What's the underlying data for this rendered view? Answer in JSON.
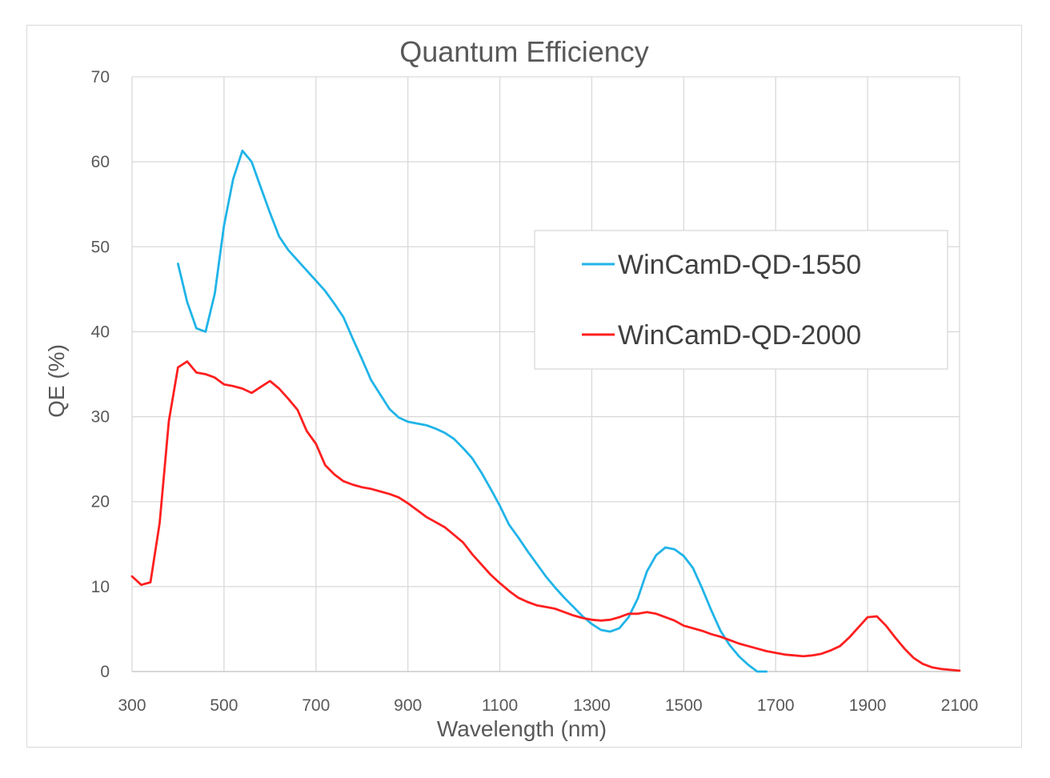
{
  "chart_data": {
    "type": "line",
    "title": "Quantum Efficiency",
    "xlabel": "Wavelength (nm)",
    "ylabel": "QE (%)",
    "xlim": [
      300,
      2100
    ],
    "ylim": [
      0,
      70
    ],
    "x_ticks": [
      300,
      500,
      700,
      900,
      1100,
      1300,
      1500,
      1700,
      1900,
      2100
    ],
    "y_ticks": [
      0,
      10,
      20,
      30,
      40,
      50,
      60,
      70
    ],
    "grid": "vertical and horizontal",
    "legend_position": "right",
    "series": [
      {
        "name": "WinCamD-QD-1550",
        "color": "#1fb4e8",
        "x": [
          400,
          420,
          440,
          460,
          480,
          500,
          520,
          540,
          560,
          580,
          600,
          620,
          640,
          660,
          680,
          700,
          720,
          740,
          760,
          780,
          800,
          820,
          840,
          860,
          880,
          900,
          920,
          940,
          960,
          980,
          1000,
          1020,
          1040,
          1060,
          1080,
          1100,
          1120,
          1140,
          1160,
          1180,
          1200,
          1220,
          1240,
          1260,
          1280,
          1300,
          1320,
          1340,
          1360,
          1380,
          1400,
          1420,
          1440,
          1460,
          1470,
          1480,
          1500,
          1520,
          1540,
          1560,
          1580,
          1600,
          1620,
          1640,
          1660,
          1680
        ],
        "y": [
          48,
          43.5,
          40.4,
          40,
          44.5,
          52.5,
          58,
          61.3,
          60,
          57,
          54,
          51.2,
          49.6,
          48.4,
          47.2,
          46,
          44.8,
          43.3,
          41.7,
          39.2,
          36.8,
          34.3,
          32.6,
          30.9,
          29.9,
          29.4,
          29.2,
          29,
          28.6,
          28.1,
          27.4,
          26.3,
          25.1,
          23.4,
          21.5,
          19.5,
          17.3,
          15.8,
          14.2,
          12.7,
          11.2,
          9.9,
          8.7,
          7.6,
          6.5,
          5.6,
          4.9,
          4.7,
          5.1,
          6.4,
          8.6,
          11.8,
          13.7,
          14.6,
          14.5,
          14.4,
          13.6,
          12.2,
          9.8,
          7.2,
          4.8,
          3.1,
          1.8,
          0.8,
          0,
          0
        ]
      },
      {
        "name": "WinCamD-QD-2000",
        "color": "#ff1f1f",
        "x": [
          300,
          320,
          340,
          360,
          380,
          400,
          420,
          440,
          460,
          480,
          500,
          520,
          540,
          560,
          580,
          600,
          620,
          640,
          660,
          680,
          700,
          720,
          740,
          760,
          780,
          800,
          820,
          840,
          860,
          880,
          900,
          920,
          940,
          960,
          980,
          1000,
          1020,
          1040,
          1060,
          1080,
          1100,
          1120,
          1140,
          1160,
          1180,
          1200,
          1220,
          1240,
          1260,
          1280,
          1300,
          1320,
          1340,
          1360,
          1380,
          1400,
          1420,
          1440,
          1460,
          1480,
          1500,
          1520,
          1540,
          1560,
          1580,
          1600,
          1620,
          1640,
          1660,
          1680,
          1700,
          1720,
          1740,
          1760,
          1780,
          1800,
          1820,
          1840,
          1860,
          1880,
          1900,
          1920,
          1940,
          1960,
          1980,
          2000,
          2020,
          2040,
          2060,
          2080,
          2100
        ],
        "y": [
          11.2,
          10.2,
          10.5,
          17.5,
          29.5,
          35.8,
          36.5,
          35.2,
          35,
          34.6,
          33.8,
          33.6,
          33.3,
          32.8,
          33.5,
          34.2,
          33.3,
          32.1,
          30.8,
          28.3,
          26.8,
          24.3,
          23.2,
          22.4,
          22,
          21.7,
          21.5,
          21.2,
          20.9,
          20.5,
          19.8,
          19,
          18.2,
          17.6,
          17,
          16.1,
          15.2,
          13.8,
          12.6,
          11.4,
          10.4,
          9.5,
          8.7,
          8.2,
          7.8,
          7.6,
          7.4,
          7,
          6.6,
          6.3,
          6.1,
          6,
          6.1,
          6.4,
          6.8,
          6.8,
          7,
          6.8,
          6.4,
          6,
          5.4,
          5.1,
          4.8,
          4.4,
          4.1,
          3.7,
          3.3,
          3,
          2.7,
          2.4,
          2.2,
          2,
          1.9,
          1.8,
          1.9,
          2.1,
          2.5,
          3,
          4,
          5.2,
          6.4,
          6.5,
          5.4,
          4,
          2.7,
          1.6,
          0.9,
          0.5,
          0.3,
          0.2,
          0.1
        ]
      }
    ]
  }
}
